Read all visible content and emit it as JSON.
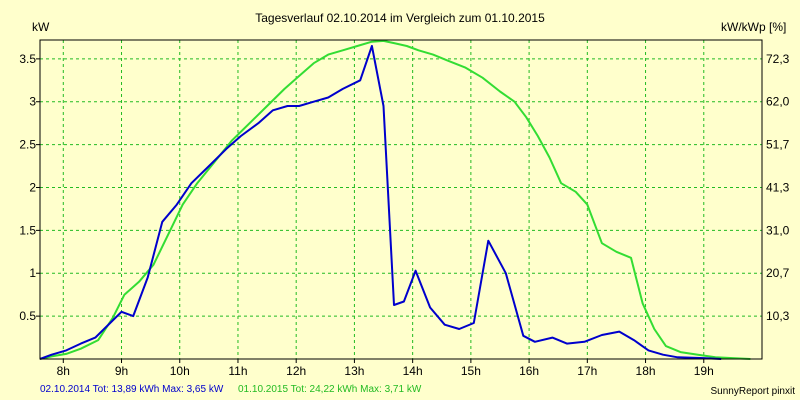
{
  "chart_data": {
    "type": "line",
    "title": "Tagesverlauf 02.10.2014 im Vergleich zum 01.10.2015",
    "ylabel": "kW",
    "y2label": "kW/kWp [%]",
    "xlim": [
      7.6,
      20.0
    ],
    "ylim": [
      0,
      3.72
    ],
    "x_ticks": [
      8,
      9,
      10,
      11,
      12,
      13,
      14,
      15,
      16,
      17,
      18,
      19
    ],
    "x_tick_labels": [
      "8h",
      "9h",
      "10h",
      "11h",
      "12h",
      "13h",
      "14h",
      "15h",
      "16h",
      "17h",
      "18h",
      "19h"
    ],
    "y_ticks": [
      0.5,
      1,
      1.5,
      2,
      2.5,
      3,
      3.5
    ],
    "y_tick_labels": [
      "0.5",
      "1",
      "1.5",
      "2",
      "2.5",
      "3",
      "3.5"
    ],
    "y2_tick_labels": [
      "10,3",
      "20,7",
      "31,0",
      "41,3",
      "51,7",
      "62,0",
      "72,3"
    ],
    "grid": true,
    "series": [
      {
        "name": "02.10.2014",
        "color": "#0000cc",
        "x": [
          7.6,
          7.8,
          8.05,
          8.3,
          8.55,
          8.85,
          9.0,
          9.2,
          9.45,
          9.7,
          9.95,
          10.2,
          10.5,
          10.8,
          11.05,
          11.35,
          11.6,
          11.85,
          12.05,
          12.3,
          12.55,
          12.8,
          13.1,
          13.3,
          13.5,
          13.68,
          13.85,
          14.05,
          14.3,
          14.55,
          14.8,
          15.05,
          15.3,
          15.6,
          15.9,
          16.1,
          16.4,
          16.65,
          16.95,
          17.25,
          17.55,
          17.8,
          18.05,
          18.3,
          18.55,
          19.0,
          19.3
        ],
        "y": [
          0.0,
          0.05,
          0.1,
          0.18,
          0.25,
          0.45,
          0.55,
          0.5,
          0.95,
          1.6,
          1.8,
          2.05,
          2.25,
          2.45,
          2.6,
          2.75,
          2.9,
          2.95,
          2.95,
          3.0,
          3.05,
          3.15,
          3.25,
          3.65,
          2.95,
          0.63,
          0.67,
          1.03,
          0.6,
          0.4,
          0.35,
          0.42,
          1.38,
          1.0,
          0.27,
          0.2,
          0.25,
          0.18,
          0.2,
          0.28,
          0.32,
          0.22,
          0.1,
          0.05,
          0.02,
          0.01,
          0.0
        ]
      },
      {
        "name": "01.10.2015",
        "color": "#33dd33",
        "x": [
          7.6,
          7.8,
          8.05,
          8.3,
          8.6,
          8.85,
          9.05,
          9.3,
          9.55,
          9.8,
          10.05,
          10.3,
          10.6,
          10.9,
          11.2,
          11.5,
          11.8,
          12.05,
          12.3,
          12.55,
          12.8,
          13.05,
          13.3,
          13.5,
          13.7,
          13.9,
          14.1,
          14.35,
          14.6,
          14.9,
          15.2,
          15.5,
          15.75,
          15.95,
          16.15,
          16.35,
          16.55,
          16.8,
          17.0,
          17.25,
          17.5,
          17.75,
          17.95,
          18.15,
          18.35,
          18.6,
          18.9,
          19.2,
          19.5,
          19.8
        ],
        "y": [
          0.0,
          0.03,
          0.06,
          0.12,
          0.22,
          0.48,
          0.75,
          0.9,
          1.1,
          1.45,
          1.8,
          2.05,
          2.3,
          2.55,
          2.75,
          2.95,
          3.15,
          3.3,
          3.45,
          3.55,
          3.6,
          3.65,
          3.7,
          3.71,
          3.68,
          3.65,
          3.6,
          3.55,
          3.48,
          3.4,
          3.28,
          3.12,
          3.0,
          2.82,
          2.6,
          2.35,
          2.05,
          1.95,
          1.8,
          1.35,
          1.25,
          1.18,
          0.65,
          0.35,
          0.15,
          0.08,
          0.05,
          0.02,
          0.01,
          0.0
        ]
      }
    ]
  },
  "footer": {
    "series1_summary": "02.10.2014 Tot: 13,89 kWh Max: 3,65 kW",
    "series2_summary": "01.10.2015 Tot: 24,22 kWh Max: 3,71 kW",
    "brand": "SunnyReport pinxit"
  }
}
